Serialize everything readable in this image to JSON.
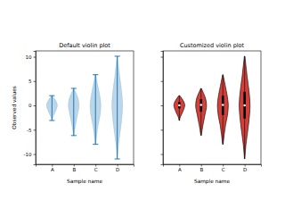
{
  "chart_data": [
    {
      "type": "violin",
      "title": "Default violin plot",
      "x_label": "Sample name",
      "y_label": "Observed values",
      "color": "#1f77b4",
      "xlim": [
        0.25,
        4.75
      ],
      "xticks": [
        {
          "value": 1,
          "label": "A"
        },
        {
          "value": 2,
          "label": "B"
        },
        {
          "value": 3,
          "label": "C"
        },
        {
          "value": 4,
          "label": "D"
        }
      ],
      "ylim": [
        -12.1,
        11.2
      ],
      "yticks": [
        -10,
        -5,
        0,
        5,
        10
      ],
      "violins": [
        {
          "x": 1,
          "min": -3.1,
          "max": 2.0,
          "y": [
            -3.1,
            -2.5,
            -2,
            -1,
            0,
            1,
            1.5,
            2.0
          ],
          "density": [
            0.05,
            0.15,
            0.35,
            0.75,
            1.0,
            0.7,
            0.4,
            0.1
          ]
        },
        {
          "x": 2,
          "min": -6.2,
          "max": 3.5,
          "y": [
            -6.2,
            -5,
            -4,
            -2,
            0,
            1.5,
            2.5,
            3.5
          ],
          "density": [
            0.05,
            0.2,
            0.35,
            0.7,
            1.0,
            0.8,
            0.45,
            0.05
          ]
        },
        {
          "x": 3,
          "min": -8.0,
          "max": 6.3,
          "y": [
            -8,
            -6,
            -4,
            -2,
            0,
            2,
            4,
            6.3
          ],
          "density": [
            0.05,
            0.25,
            0.5,
            0.85,
            1.0,
            0.8,
            0.45,
            0.05
          ]
        },
        {
          "x": 4,
          "min": -11.0,
          "max": 10.1,
          "y": [
            -11,
            -8,
            -5,
            -2,
            0,
            3,
            6,
            10.1
          ],
          "density": [
            0.03,
            0.25,
            0.6,
            0.9,
            1.0,
            0.8,
            0.45,
            0.05
          ]
        }
      ]
    },
    {
      "type": "violin",
      "title": "Customized violin plot",
      "x_label": "Sample name",
      "color": "#D43F3A",
      "tick_labels": "x",
      "xlim": [
        0.25,
        4.75
      ],
      "xticks": [
        {
          "value": 1,
          "label": "A"
        },
        {
          "value": 2,
          "label": "B"
        },
        {
          "value": 3,
          "label": "C"
        },
        {
          "value": 4,
          "label": "D"
        }
      ],
      "ylim": [
        -12.1,
        11.2
      ],
      "yticks": [
        -10,
        -5,
        0,
        5,
        10
      ],
      "violins": [
        {
          "x": 1,
          "min": -3.1,
          "max": 2.0,
          "q1": -0.6,
          "median": 0.0,
          "q3": 0.7,
          "y": [
            -3.1,
            -2.5,
            -2,
            -1,
            0,
            1,
            1.5,
            2.0
          ],
          "density": [
            0.05,
            0.15,
            0.35,
            0.75,
            1.0,
            0.7,
            0.4,
            0.1
          ]
        },
        {
          "x": 2,
          "min": -6.2,
          "max": 3.5,
          "q1": -1.3,
          "median": 0.1,
          "q3": 1.3,
          "y": [
            -6.2,
            -5,
            -4,
            -2,
            0,
            1.5,
            2.5,
            3.5
          ],
          "density": [
            0.05,
            0.2,
            0.35,
            0.7,
            1.0,
            0.8,
            0.45,
            0.05
          ]
        },
        {
          "x": 3,
          "min": -8.0,
          "max": 6.3,
          "q1": -2.0,
          "median": 0.1,
          "q3": 2.0,
          "y": [
            -8,
            -6,
            -4,
            -2,
            0,
            2,
            4,
            6.3
          ],
          "density": [
            0.05,
            0.25,
            0.5,
            0.85,
            1.0,
            0.8,
            0.45,
            0.05
          ]
        },
        {
          "x": 4,
          "min": -11.0,
          "max": 10.1,
          "q1": -2.7,
          "median": 0.0,
          "q3": 2.8,
          "y": [
            -11,
            -8,
            -5,
            -2,
            0,
            3,
            6,
            10.1
          ],
          "density": [
            0.03,
            0.25,
            0.6,
            0.9,
            1.0,
            0.8,
            0.45,
            0.05
          ]
        }
      ]
    }
  ]
}
